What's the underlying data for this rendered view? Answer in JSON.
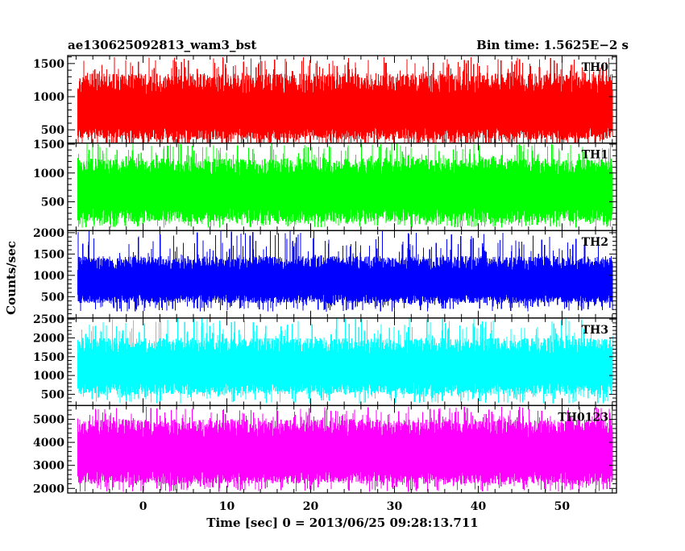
{
  "chart_data": {
    "type": "line",
    "title": "ae130625092813_wam3_bst",
    "subtitle": "Bin time: 1.5625E−2 s",
    "xlabel": "Time [sec] 0 = 2013/06/25 09:28:13.711",
    "ylabel": "Counts/sec",
    "xlim": [
      -9,
      56.5
    ],
    "x_data_range": [
      -7.8,
      56.0
    ],
    "bin_time": 0.015625,
    "x_ticks": [
      0,
      10,
      20,
      30,
      40,
      50
    ],
    "x_tick_labels": [
      "0",
      "10",
      "20",
      "30",
      "40",
      "50"
    ],
    "grid": false,
    "panels": [
      {
        "name": "TH0",
        "color": "#ff0000",
        "ylim": [
          300,
          1620
        ],
        "y_ticks": [
          500,
          1000,
          1500
        ],
        "y_tick_labels": [
          "500",
          "1000",
          "1500"
        ],
        "series_stats": {
          "mean": 760,
          "typical_low": 350,
          "typical_high": 1350,
          "min": 150,
          "max": 1600
        }
      },
      {
        "name": "TH1",
        "color": "#00ff00",
        "ylim": [
          0,
          1520
        ],
        "y_ticks": [
          500,
          1000,
          1500
        ],
        "y_tick_labels": [
          "500",
          "1000",
          "1500"
        ],
        "series_stats": {
          "mean": 700,
          "typical_low": 150,
          "typical_high": 1250,
          "min": 50,
          "max": 1520
        }
      },
      {
        "name": "TH2",
        "color": "#0000ff",
        "ylim": [
          0,
          2050
        ],
        "y_ticks": [
          500,
          1000,
          1500,
          2000
        ],
        "y_tick_labels": [
          "500",
          "1000",
          "1500",
          "2000"
        ],
        "series_stats": {
          "mean": 820,
          "typical_low": 350,
          "typical_high": 1450,
          "min": 150,
          "max": 2050
        }
      },
      {
        "name": "TH3",
        "color": "#00ffff",
        "ylim": [
          200,
          2530
        ],
        "y_ticks": [
          500,
          1000,
          1500,
          2000,
          2500
        ],
        "y_tick_labels": [
          "500",
          "1000",
          "1500",
          "2000",
          "2500"
        ],
        "series_stats": {
          "mean": 1200,
          "typical_low": 500,
          "typical_high": 2000,
          "min": 250,
          "max": 2530
        }
      },
      {
        "name": "TH0123",
        "color": "#ff00ff",
        "ylim": [
          1800,
          5600
        ],
        "y_ticks": [
          2000,
          3000,
          4000,
          5000
        ],
        "y_tick_labels": [
          "2000",
          "3000",
          "4000",
          "5000"
        ],
        "series_stats": {
          "mean": 3500,
          "typical_low": 2200,
          "typical_high": 5000,
          "min": 1850,
          "max": 5550
        }
      }
    ]
  }
}
